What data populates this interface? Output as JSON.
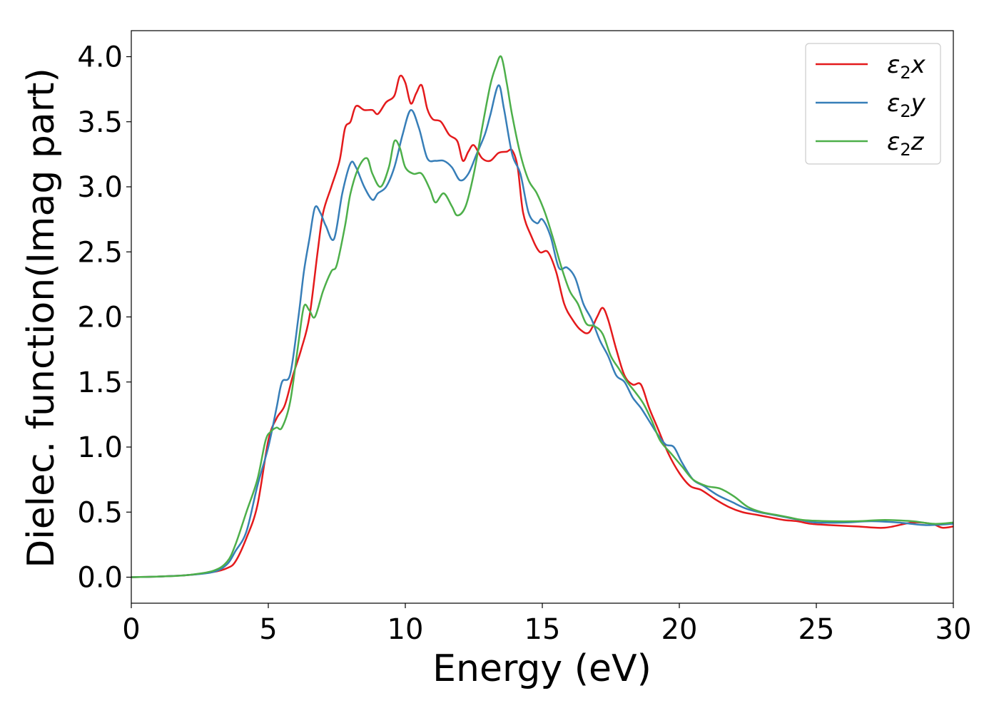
{
  "chart_data": {
    "type": "line",
    "title": "",
    "xlabel": "Energy (eV)",
    "ylabel": "Dielec. function(Imag part)",
    "xlim": [
      0,
      30
    ],
    "ylim": [
      -0.2,
      4.2
    ],
    "xticks": [
      0,
      5,
      10,
      15,
      20,
      25,
      30
    ],
    "yticks": [
      0.0,
      0.5,
      1.0,
      1.5,
      2.0,
      2.5,
      3.0,
      3.5,
      4.0
    ],
    "xtick_labels": [
      "0",
      "5",
      "10",
      "15",
      "20",
      "25",
      "30"
    ],
    "ytick_labels": [
      "0.0",
      "0.5",
      "1.0",
      "1.5",
      "2.0",
      "2.5",
      "3.0",
      "3.5",
      "4.0"
    ],
    "grid": false,
    "legend_position": "top-right",
    "series": [
      {
        "name": "ε",
        "sub": "2",
        "suffix": "x",
        "color": "#e41a1c",
        "points": [
          [
            0,
            0.0
          ],
          [
            1,
            0.005
          ],
          [
            2,
            0.015
          ],
          [
            3,
            0.04
          ],
          [
            3.5,
            0.07
          ],
          [
            3.8,
            0.12
          ],
          [
            4.2,
            0.3
          ],
          [
            4.6,
            0.55
          ],
          [
            5.0,
            1.05
          ],
          [
            5.3,
            1.22
          ],
          [
            5.6,
            1.32
          ],
          [
            5.9,
            1.55
          ],
          [
            6.2,
            1.75
          ],
          [
            6.5,
            2.0
          ],
          [
            6.8,
            2.5
          ],
          [
            7.0,
            2.8
          ],
          [
            7.3,
            3.0
          ],
          [
            7.6,
            3.2
          ],
          [
            7.8,
            3.45
          ],
          [
            8.0,
            3.5
          ],
          [
            8.2,
            3.62
          ],
          [
            8.5,
            3.59
          ],
          [
            8.8,
            3.59
          ],
          [
            9.0,
            3.56
          ],
          [
            9.3,
            3.65
          ],
          [
            9.6,
            3.7
          ],
          [
            9.8,
            3.85
          ],
          [
            10.0,
            3.8
          ],
          [
            10.2,
            3.64
          ],
          [
            10.4,
            3.72
          ],
          [
            10.6,
            3.78
          ],
          [
            10.8,
            3.6
          ],
          [
            11.0,
            3.52
          ],
          [
            11.3,
            3.5
          ],
          [
            11.6,
            3.4
          ],
          [
            11.9,
            3.35
          ],
          [
            12.1,
            3.2
          ],
          [
            12.3,
            3.27
          ],
          [
            12.5,
            3.32
          ],
          [
            12.8,
            3.22
          ],
          [
            13.1,
            3.2
          ],
          [
            13.4,
            3.26
          ],
          [
            13.7,
            3.27
          ],
          [
            13.9,
            3.28
          ],
          [
            14.1,
            3.15
          ],
          [
            14.3,
            2.8
          ],
          [
            14.6,
            2.62
          ],
          [
            14.9,
            2.5
          ],
          [
            15.2,
            2.5
          ],
          [
            15.5,
            2.35
          ],
          [
            15.8,
            2.1
          ],
          [
            16.1,
            1.98
          ],
          [
            16.4,
            1.9
          ],
          [
            16.7,
            1.88
          ],
          [
            17.0,
            2.0
          ],
          [
            17.2,
            2.07
          ],
          [
            17.4,
            1.98
          ],
          [
            17.7,
            1.75
          ],
          [
            18.0,
            1.55
          ],
          [
            18.3,
            1.48
          ],
          [
            18.6,
            1.48
          ],
          [
            18.9,
            1.3
          ],
          [
            19.2,
            1.15
          ],
          [
            19.6,
            0.95
          ],
          [
            20.0,
            0.8
          ],
          [
            20.4,
            0.7
          ],
          [
            20.8,
            0.67
          ],
          [
            21.3,
            0.6
          ],
          [
            21.8,
            0.54
          ],
          [
            22.3,
            0.5
          ],
          [
            22.8,
            0.48
          ],
          [
            23.3,
            0.46
          ],
          [
            23.8,
            0.44
          ],
          [
            24.3,
            0.43
          ],
          [
            24.8,
            0.41
          ],
          [
            25.5,
            0.4
          ],
          [
            26.5,
            0.39
          ],
          [
            27.5,
            0.38
          ],
          [
            28.5,
            0.42
          ],
          [
            29.2,
            0.41
          ],
          [
            29.6,
            0.38
          ],
          [
            30,
            0.39
          ]
        ]
      },
      {
        "name": "ε",
        "sub": "2",
        "suffix": "y",
        "color": "#377eb8",
        "points": [
          [
            0,
            0.0
          ],
          [
            1,
            0.005
          ],
          [
            2,
            0.015
          ],
          [
            3,
            0.04
          ],
          [
            3.5,
            0.1
          ],
          [
            3.8,
            0.2
          ],
          [
            4.2,
            0.35
          ],
          [
            4.6,
            0.7
          ],
          [
            5.0,
            1.0
          ],
          [
            5.3,
            1.3
          ],
          [
            5.5,
            1.5
          ],
          [
            5.8,
            1.56
          ],
          [
            6.1,
            2.0
          ],
          [
            6.3,
            2.35
          ],
          [
            6.5,
            2.6
          ],
          [
            6.7,
            2.84
          ],
          [
            6.9,
            2.8
          ],
          [
            7.1,
            2.7
          ],
          [
            7.4,
            2.6
          ],
          [
            7.7,
            2.95
          ],
          [
            8.0,
            3.18
          ],
          [
            8.2,
            3.15
          ],
          [
            8.5,
            3.0
          ],
          [
            8.8,
            2.9
          ],
          [
            9.0,
            2.95
          ],
          [
            9.3,
            3.0
          ],
          [
            9.6,
            3.15
          ],
          [
            9.9,
            3.4
          ],
          [
            10.2,
            3.59
          ],
          [
            10.5,
            3.45
          ],
          [
            10.8,
            3.22
          ],
          [
            11.1,
            3.2
          ],
          [
            11.4,
            3.2
          ],
          [
            11.7,
            3.15
          ],
          [
            12.0,
            3.05
          ],
          [
            12.3,
            3.1
          ],
          [
            12.6,
            3.25
          ],
          [
            12.9,
            3.4
          ],
          [
            13.1,
            3.55
          ],
          [
            13.4,
            3.78
          ],
          [
            13.6,
            3.6
          ],
          [
            13.9,
            3.25
          ],
          [
            14.2,
            3.1
          ],
          [
            14.5,
            2.8
          ],
          [
            14.8,
            2.72
          ],
          [
            15.0,
            2.75
          ],
          [
            15.3,
            2.62
          ],
          [
            15.6,
            2.38
          ],
          [
            15.9,
            2.38
          ],
          [
            16.2,
            2.3
          ],
          [
            16.5,
            2.1
          ],
          [
            16.8,
            1.98
          ],
          [
            17.1,
            1.82
          ],
          [
            17.4,
            1.7
          ],
          [
            17.7,
            1.55
          ],
          [
            18.0,
            1.5
          ],
          [
            18.3,
            1.38
          ],
          [
            18.6,
            1.3
          ],
          [
            18.9,
            1.2
          ],
          [
            19.2,
            1.1
          ],
          [
            19.5,
            1.02
          ],
          [
            19.8,
            1.0
          ],
          [
            20.1,
            0.88
          ],
          [
            20.5,
            0.75
          ],
          [
            20.9,
            0.7
          ],
          [
            21.4,
            0.63
          ],
          [
            21.9,
            0.58
          ],
          [
            22.4,
            0.53
          ],
          [
            22.9,
            0.5
          ],
          [
            23.4,
            0.48
          ],
          [
            23.9,
            0.46
          ],
          [
            24.4,
            0.44
          ],
          [
            25.0,
            0.42
          ],
          [
            26.0,
            0.42
          ],
          [
            27.0,
            0.43
          ],
          [
            28.0,
            0.42
          ],
          [
            29.0,
            0.4
          ],
          [
            30,
            0.41
          ]
        ]
      },
      {
        "name": "ε",
        "sub": "2",
        "suffix": "z",
        "color": "#4daf4a",
        "points": [
          [
            0,
            0.0
          ],
          [
            1,
            0.005
          ],
          [
            2,
            0.015
          ],
          [
            3,
            0.05
          ],
          [
            3.5,
            0.12
          ],
          [
            3.8,
            0.25
          ],
          [
            4.2,
            0.5
          ],
          [
            4.6,
            0.75
          ],
          [
            4.9,
            1.05
          ],
          [
            5.1,
            1.12
          ],
          [
            5.3,
            1.15
          ],
          [
            5.5,
            1.15
          ],
          [
            5.8,
            1.35
          ],
          [
            6.1,
            1.8
          ],
          [
            6.3,
            2.08
          ],
          [
            6.5,
            2.05
          ],
          [
            6.7,
            2.0
          ],
          [
            7.0,
            2.2
          ],
          [
            7.3,
            2.35
          ],
          [
            7.5,
            2.4
          ],
          [
            7.8,
            2.7
          ],
          [
            8.0,
            2.95
          ],
          [
            8.3,
            3.15
          ],
          [
            8.6,
            3.22
          ],
          [
            8.8,
            3.1
          ],
          [
            9.1,
            3.0
          ],
          [
            9.4,
            3.15
          ],
          [
            9.6,
            3.35
          ],
          [
            9.8,
            3.3
          ],
          [
            10.0,
            3.15
          ],
          [
            10.3,
            3.1
          ],
          [
            10.6,
            3.1
          ],
          [
            10.9,
            2.98
          ],
          [
            11.1,
            2.88
          ],
          [
            11.4,
            2.95
          ],
          [
            11.7,
            2.85
          ],
          [
            11.9,
            2.78
          ],
          [
            12.2,
            2.85
          ],
          [
            12.5,
            3.1
          ],
          [
            12.8,
            3.45
          ],
          [
            13.1,
            3.78
          ],
          [
            13.3,
            3.92
          ],
          [
            13.5,
            4.0
          ],
          [
            13.7,
            3.8
          ],
          [
            13.9,
            3.55
          ],
          [
            14.2,
            3.25
          ],
          [
            14.5,
            3.05
          ],
          [
            14.8,
            2.95
          ],
          [
            15.1,
            2.8
          ],
          [
            15.4,
            2.6
          ],
          [
            15.7,
            2.38
          ],
          [
            16.0,
            2.2
          ],
          [
            16.3,
            2.1
          ],
          [
            16.6,
            1.95
          ],
          [
            16.9,
            1.93
          ],
          [
            17.2,
            1.87
          ],
          [
            17.5,
            1.7
          ],
          [
            17.8,
            1.6
          ],
          [
            18.1,
            1.5
          ],
          [
            18.4,
            1.42
          ],
          [
            18.7,
            1.33
          ],
          [
            19.0,
            1.2
          ],
          [
            19.3,
            1.05
          ],
          [
            19.7,
            0.95
          ],
          [
            20.1,
            0.85
          ],
          [
            20.5,
            0.75
          ],
          [
            21.0,
            0.7
          ],
          [
            21.5,
            0.68
          ],
          [
            22.0,
            0.62
          ],
          [
            22.5,
            0.54
          ],
          [
            23.0,
            0.5
          ],
          [
            23.5,
            0.48
          ],
          [
            24.0,
            0.46
          ],
          [
            24.5,
            0.44
          ],
          [
            25.5,
            0.43
          ],
          [
            26.5,
            0.43
          ],
          [
            27.5,
            0.44
          ],
          [
            28.5,
            0.43
          ],
          [
            29.3,
            0.41
          ],
          [
            30,
            0.42
          ]
        ]
      }
    ]
  }
}
